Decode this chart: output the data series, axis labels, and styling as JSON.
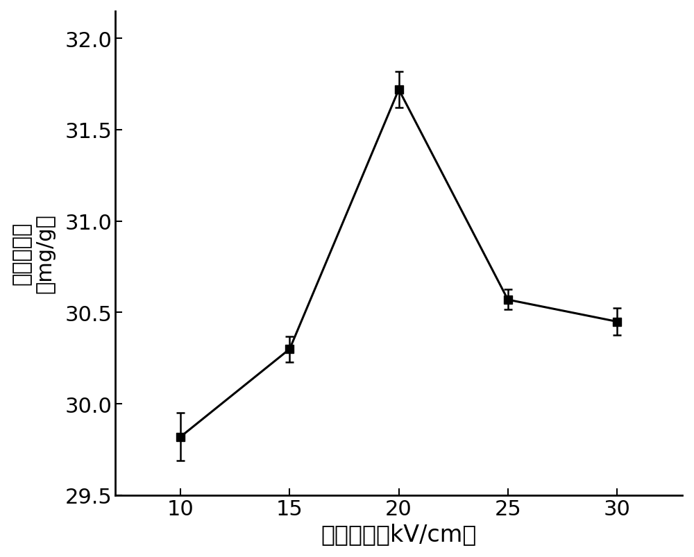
{
  "x": [
    10,
    15,
    20,
    25,
    30
  ],
  "y": [
    29.82,
    30.3,
    31.72,
    30.57,
    30.45
  ],
  "yerr": [
    0.13,
    0.07,
    0.1,
    0.055,
    0.075
  ],
  "xlabel": "电场强度（kV/cm）",
  "ylabel_line1": "花色苷含量",
  "ylabel_line2": "（mg/g）",
  "ylim": [
    29.5,
    32.15
  ],
  "yticks": [
    29.5,
    30.0,
    30.5,
    31.0,
    31.5,
    32.0
  ],
  "xticks": [
    10,
    15,
    20,
    25,
    30
  ],
  "line_color": "#000000",
  "marker": "s",
  "marker_size": 8,
  "line_width": 2.2,
  "capsize": 4,
  "elinewidth": 1.8,
  "xlabel_fontsize": 24,
  "ylabel_fontsize": 22,
  "tick_fontsize": 22,
  "background_color": "#ffffff"
}
